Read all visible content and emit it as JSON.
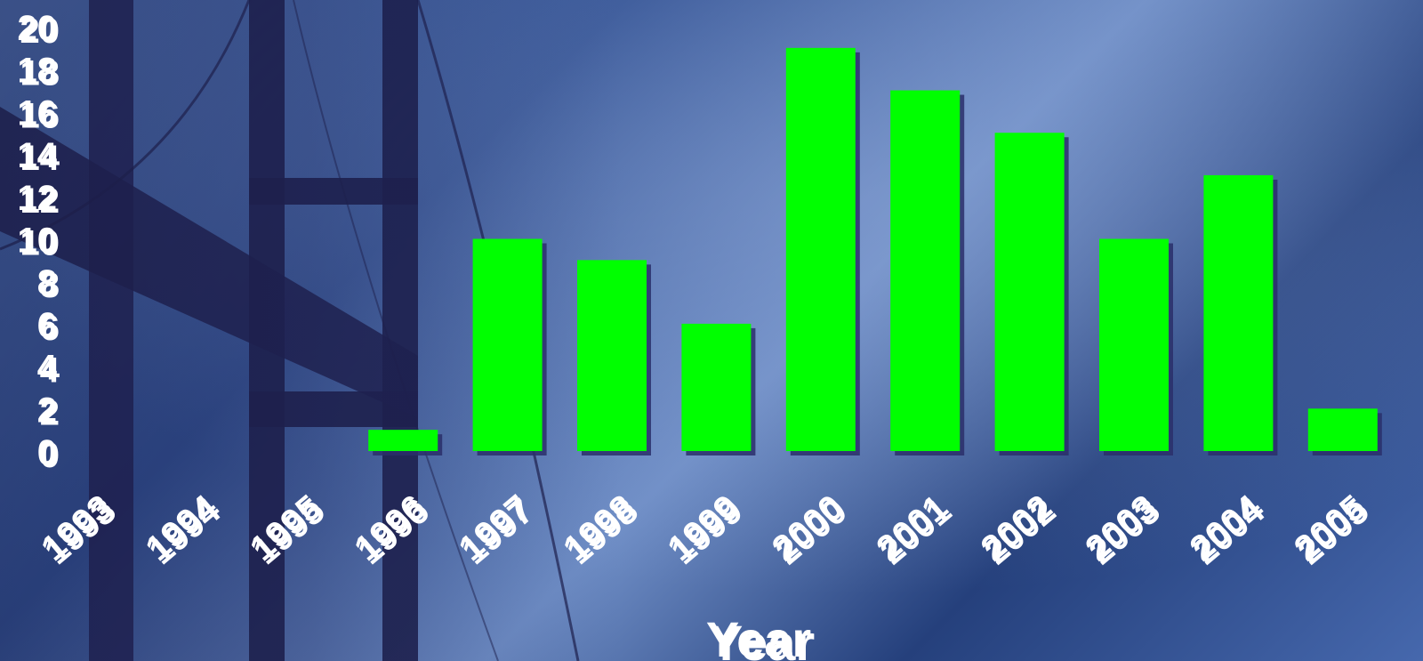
{
  "chart_data": {
    "type": "bar",
    "title": "",
    "xlabel": "Year",
    "ylabel": "",
    "ylim": [
      0,
      20
    ],
    "yticks": [
      0,
      2,
      4,
      6,
      8,
      10,
      12,
      14,
      16,
      18,
      20
    ],
    "grid": false,
    "categories": [
      "1993",
      "1994",
      "1995",
      "1996",
      "1997",
      "1998",
      "1999",
      "2000",
      "2001",
      "2002",
      "2003",
      "2004",
      "2005"
    ],
    "values": [
      0,
      0,
      0,
      1,
      10,
      9,
      6,
      19,
      17,
      15,
      10,
      13,
      2
    ],
    "colors": {
      "bar": "#00ff00",
      "bar_shadow": "#2a2f6a",
      "text": "#ffffff",
      "text_shadow": "#1a1f4f"
    }
  }
}
